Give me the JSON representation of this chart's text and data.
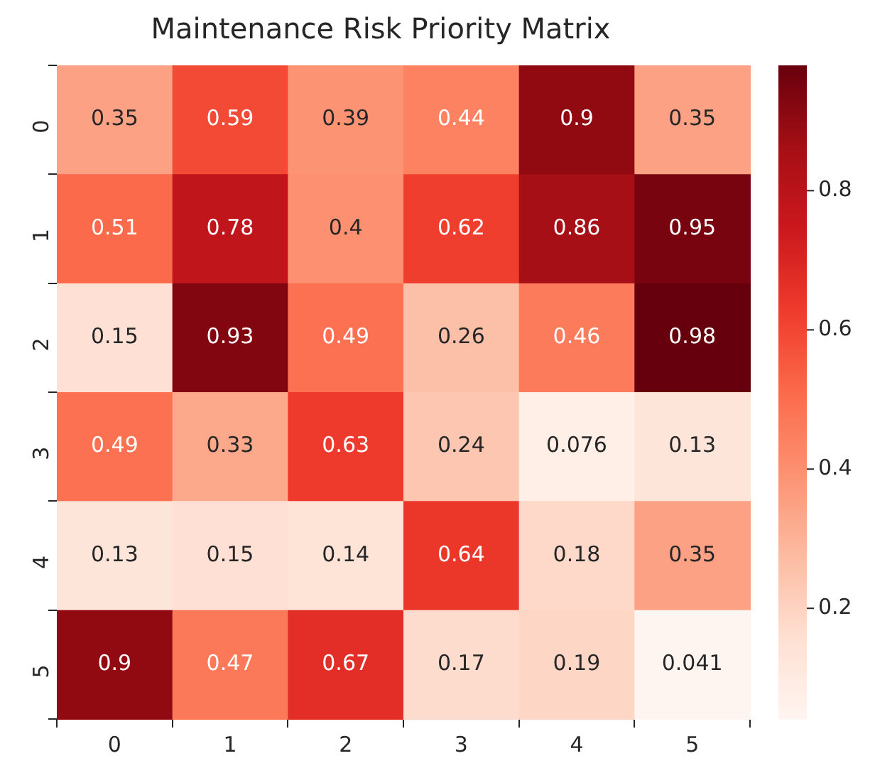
{
  "chart_data": {
    "type": "heatmap",
    "title": "Maintenance Risk Priority Matrix",
    "categories": [
      "0",
      "1",
      "2",
      "3",
      "4",
      "5"
    ],
    "y_categories": [
      "0",
      "1",
      "2",
      "3",
      "4",
      "5"
    ],
    "cells": [
      [
        0.35,
        0.59,
        0.39,
        0.44,
        0.9,
        0.35
      ],
      [
        0.51,
        0.78,
        0.4,
        0.62,
        0.86,
        0.95
      ],
      [
        0.15,
        0.93,
        0.49,
        0.26,
        0.46,
        0.98
      ],
      [
        0.49,
        0.33,
        0.63,
        0.24,
        0.076,
        0.13
      ],
      [
        0.13,
        0.15,
        0.14,
        0.64,
        0.18,
        0.35
      ],
      [
        0.9,
        0.47,
        0.67,
        0.17,
        0.19,
        0.041
      ]
    ],
    "data_labels": true,
    "clim": [
      0.041,
      0.98
    ],
    "cticks": [
      0.2,
      0.4,
      0.6,
      0.8
    ]
  }
}
